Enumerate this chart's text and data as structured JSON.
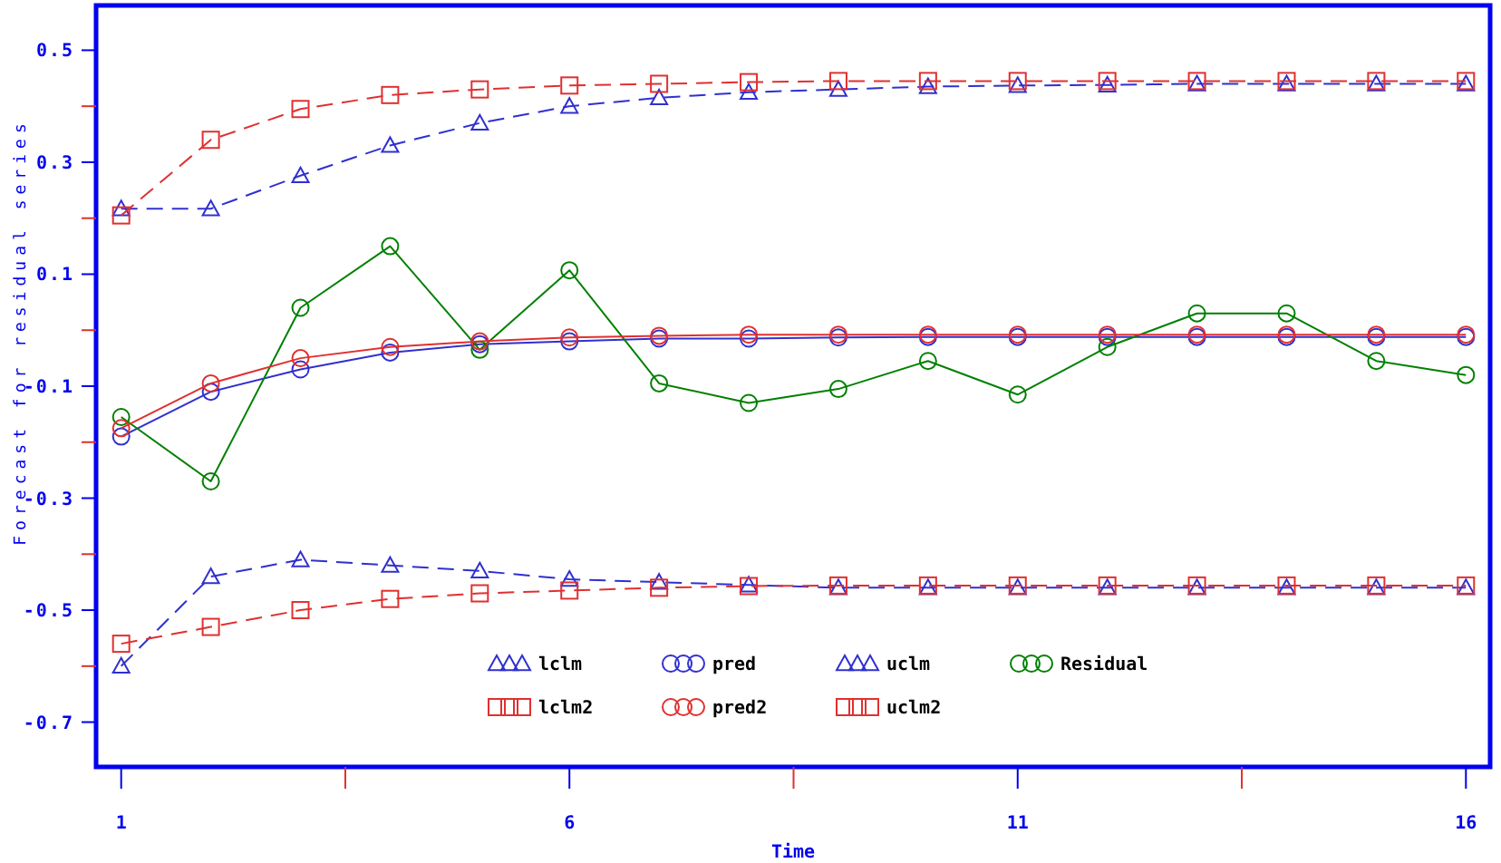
{
  "chart_data": {
    "type": "line",
    "xlabel": "Time",
    "ylabel": "Forecast for residual series",
    "x": [
      1,
      2,
      3,
      4,
      5,
      6,
      7,
      8,
      9,
      10,
      11,
      12,
      13,
      14,
      15,
      16
    ],
    "xlim": [
      0.72,
      16.27
    ],
    "xticks": [
      1,
      {
        "value": 3.5,
        "label": null
      },
      6,
      {
        "value": 8.5,
        "label": null
      },
      11,
      {
        "value": 13.5,
        "label": null
      },
      16
    ],
    "ylim": [
      -0.78,
      0.58
    ],
    "yticks": [
      {
        "value": -0.7,
        "label": "-0.7"
      },
      {
        "value": -0.6,
        "label": null
      },
      {
        "value": -0.5,
        "label": "-0.5"
      },
      {
        "value": -0.4,
        "label": null
      },
      {
        "value": -0.3,
        "label": "-0.3"
      },
      {
        "value": -0.2,
        "label": null
      },
      {
        "value": -0.1,
        "label": "-0.1"
      },
      {
        "value": 0,
        "label": null
      },
      {
        "value": 0.1,
        "label": "0.1"
      },
      {
        "value": 0.2,
        "label": null
      },
      {
        "value": 0.3,
        "label": "0.3"
      },
      {
        "value": 0.4,
        "label": null
      },
      {
        "value": 0.5,
        "label": "0.5"
      }
    ],
    "legend": "bottom",
    "series": [
      {
        "name": "lclm",
        "color": "#3030d0",
        "marker": "triangle",
        "line_style": "dashed",
        "values": [
          -0.6,
          -0.44,
          -0.41,
          -0.42,
          -0.43,
          -0.445,
          -0.45,
          -0.455,
          -0.46,
          -0.46,
          -0.46,
          -0.46,
          -0.46,
          -0.46,
          -0.46,
          -0.46
        ]
      },
      {
        "name": "pred",
        "color": "#3030d0",
        "marker": "circle",
        "line_style": "solid",
        "values": [
          -0.19,
          -0.11,
          -0.07,
          -0.04,
          -0.025,
          -0.02,
          -0.015,
          -0.015,
          -0.013,
          -0.012,
          -0.012,
          -0.012,
          -0.012,
          -0.012,
          -0.012,
          -0.012
        ]
      },
      {
        "name": "uclm",
        "color": "#3030d0",
        "marker": "triangle",
        "line_style": "dashed",
        "values": [
          0.217,
          0.217,
          0.276,
          0.33,
          0.37,
          0.4,
          0.415,
          0.425,
          0.43,
          0.435,
          0.437,
          0.438,
          0.44,
          0.44,
          0.44,
          0.44
        ]
      },
      {
        "name": "Residual",
        "color": "#008000",
        "marker": "circle",
        "line_style": "solid",
        "values": [
          -0.155,
          -0.27,
          0.04,
          0.15,
          -0.035,
          0.107,
          -0.095,
          -0.13,
          -0.105,
          -0.055,
          -0.115,
          -0.03,
          0.03,
          0.03,
          -0.055,
          -0.08
        ]
      },
      {
        "name": "lclm2",
        "color": "#e03030",
        "marker": "square",
        "line_style": "dashed",
        "values": [
          -0.56,
          -0.53,
          -0.5,
          -0.48,
          -0.47,
          -0.465,
          -0.46,
          -0.457,
          -0.456,
          -0.456,
          -0.456,
          -0.456,
          -0.456,
          -0.456,
          -0.456,
          -0.456
        ]
      },
      {
        "name": "pred2",
        "color": "#e03030",
        "marker": "circle",
        "line_style": "solid",
        "values": [
          -0.175,
          -0.095,
          -0.05,
          -0.03,
          -0.02,
          -0.013,
          -0.01,
          -0.008,
          -0.008,
          -0.008,
          -0.008,
          -0.008,
          -0.008,
          -0.008,
          -0.008,
          -0.008
        ]
      },
      {
        "name": "uclm2",
        "color": "#e03030",
        "marker": "square",
        "line_style": "dashed",
        "values": [
          0.205,
          0.34,
          0.395,
          0.42,
          0.43,
          0.437,
          0.44,
          0.443,
          0.445,
          0.445,
          0.445,
          0.445,
          0.445,
          0.445,
          0.445,
          0.445
        ]
      }
    ]
  }
}
